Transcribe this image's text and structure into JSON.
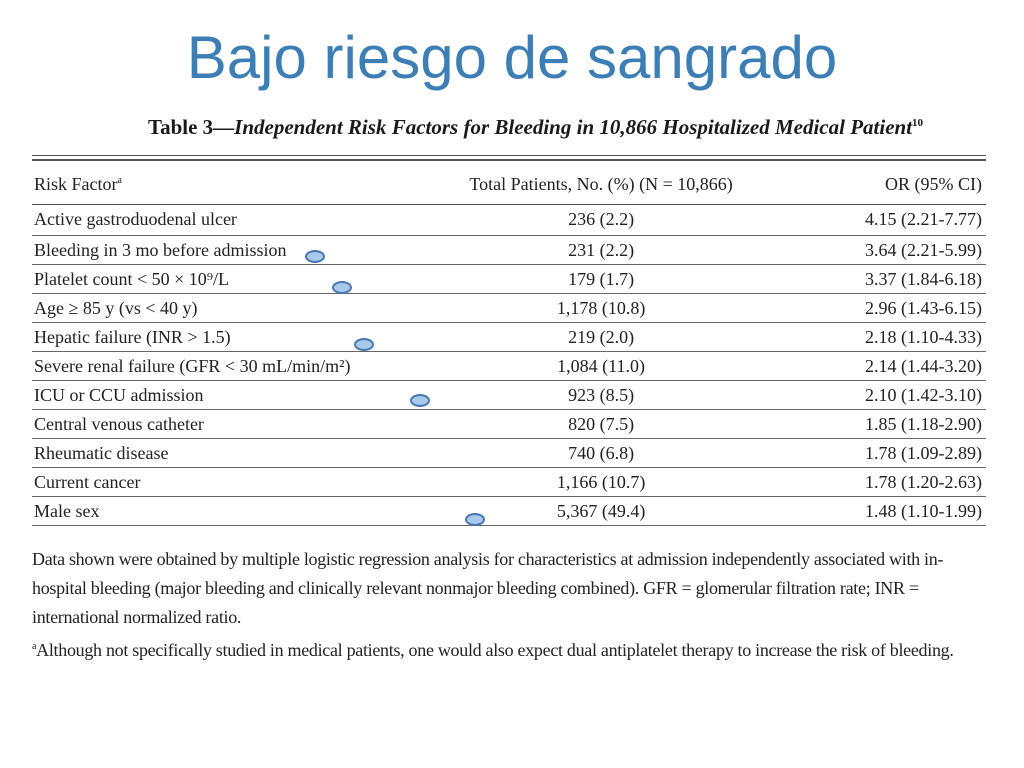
{
  "slide": {
    "title": "Bajo riesgo de sangrado"
  },
  "caption": {
    "number": "Table 3—",
    "text": "Independent Risk Factors for Bleeding in 10,866 Hospitalized Medical Patient",
    "ref": "10"
  },
  "table": {
    "headers": {
      "factor": "Risk Factor",
      "factor_sup": "a",
      "total": "Total Patients, No. (%) (N = 10,866)",
      "or": "OR (95% CI)"
    },
    "rows": [
      {
        "factor": "Active gastroduodenal ulcer",
        "total": "236 (2.2)",
        "or": "4.15 (2.21-7.77)"
      },
      {
        "factor": "Bleeding in 3 mo before admission",
        "total": "231 (2.2)",
        "or": "3.64 (2.21-5.99)"
      },
      {
        "factor": "Platelet count < 50 × 10⁹/L",
        "total": "179 (1.7)",
        "or": "3.37 (1.84-6.18)"
      },
      {
        "factor": "Age ≥ 85 y (vs < 40 y)",
        "total": "1,178 (10.8)",
        "or": "2.96 (1.43-6.15)"
      },
      {
        "factor": "Hepatic failure (INR > 1.5)",
        "total": "219 (2.0)",
        "or": "2.18 (1.10-4.33)"
      },
      {
        "factor": "Severe renal failure (GFR < 30 mL/min/m²)",
        "total": "1,084 (11.0)",
        "or": "2.14 (1.44-3.20)"
      },
      {
        "factor": "ICU or CCU admission",
        "total": "923 (8.5)",
        "or": "2.10 (1.42-3.10)"
      },
      {
        "factor": "Central venous catheter",
        "total": "820 (7.5)",
        "or": "1.85 (1.18-2.90)"
      },
      {
        "factor": "Rheumatic disease",
        "total": "740 (6.8)",
        "or": "1.78 (1.09-2.89)"
      },
      {
        "factor": "Current cancer",
        "total": "1,166 (10.7)",
        "or": "1.78 (1.20-2.63)"
      },
      {
        "factor": "Male sex",
        "total": "5,367 (49.4)",
        "or": "1.48 (1.10-1.99)"
      }
    ]
  },
  "footnotes": {
    "main": "Data shown were obtained by multiple logistic regression analysis for characteristics at admission independently associated with in-hospital bleeding (major bleeding and clinically relevant nonmajor bleeding combined). GFR = glomerular filtration rate; INR = international normalized ratio.",
    "a_sup": "a",
    "a": "Although not specifically studied in medical patients, one would also expect dual antiplatelet therapy to increase the risk of bleeding."
  },
  "markers": {
    "color": "#a8c8ec",
    "border_color": "#4a78b0"
  }
}
